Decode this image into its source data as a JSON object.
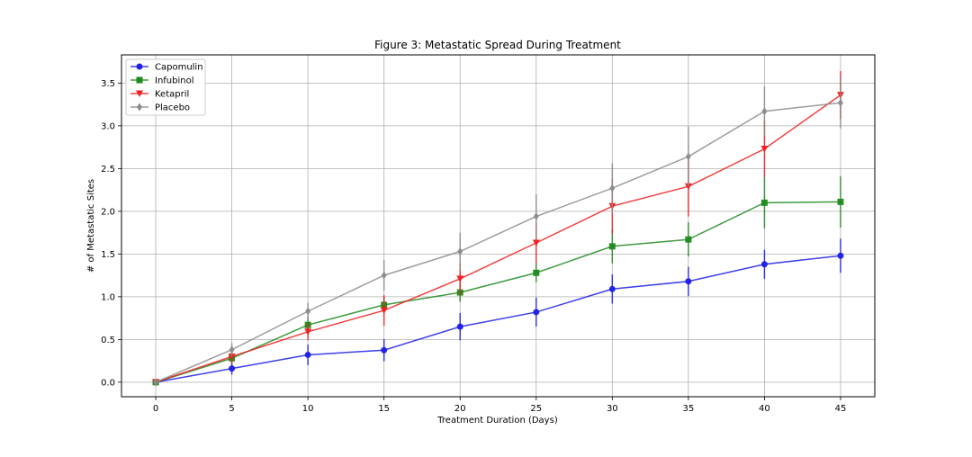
{
  "chart_data": {
    "type": "line",
    "title": "Figure 3: Metastatic Spread During Treatment",
    "xlabel": "Treatment Duration (Days)",
    "ylabel": "# of Metastatic Sites",
    "x": [
      0,
      5,
      10,
      15,
      20,
      25,
      30,
      35,
      40,
      45
    ],
    "xlim": [
      -2.25,
      47.25
    ],
    "ylim": [
      -0.17,
      3.83
    ],
    "x_ticks": [
      0,
      5,
      10,
      15,
      20,
      25,
      30,
      35,
      40,
      45
    ],
    "y_ticks": [
      0.0,
      0.5,
      1.0,
      1.5,
      2.0,
      2.5,
      3.0,
      3.5
    ],
    "y_tick_labels": [
      "0.0",
      "0.5",
      "1.0",
      "1.5",
      "2.0",
      "2.5",
      "3.0",
      "3.5"
    ],
    "grid": true,
    "legend_position": "top-left",
    "series": [
      {
        "name": "Capomulin",
        "color": "#1f1fe6",
        "marker": "circle",
        "values": [
          0.0,
          0.16,
          0.32,
          0.375,
          0.65,
          0.82,
          1.09,
          1.18,
          1.38,
          1.48
        ],
        "errors": [
          0.0,
          0.07,
          0.12,
          0.13,
          0.16,
          0.17,
          0.17,
          0.17,
          0.17,
          0.2
        ]
      },
      {
        "name": "Infubinol",
        "color": "#1e8a1e",
        "marker": "square",
        "values": [
          0.0,
          0.28,
          0.67,
          0.905,
          1.05,
          1.28,
          1.59,
          1.67,
          2.1,
          2.11
        ],
        "errors": [
          0.0,
          0.08,
          0.1,
          0.1,
          0.11,
          0.11,
          0.2,
          0.2,
          0.3,
          0.3
        ]
      },
      {
        "name": "Ketapril",
        "color": "#f01e1e",
        "marker": "triangle-down",
        "values": [
          0.0,
          0.3,
          0.59,
          0.84,
          1.21,
          1.63,
          2.06,
          2.29,
          2.73,
          3.36
        ],
        "errors": [
          0.0,
          0.09,
          0.1,
          0.18,
          0.19,
          0.24,
          0.32,
          0.35,
          0.33,
          0.28
        ]
      },
      {
        "name": "Placebo",
        "color": "#8c8c8c",
        "marker": "diamond",
        "values": [
          0.0,
          0.38,
          0.83,
          1.25,
          1.53,
          1.94,
          2.27,
          2.64,
          3.17,
          3.27
        ],
        "errors": [
          0.0,
          0.08,
          0.1,
          0.18,
          0.22,
          0.26,
          0.29,
          0.35,
          0.29,
          0.3
        ]
      }
    ]
  }
}
